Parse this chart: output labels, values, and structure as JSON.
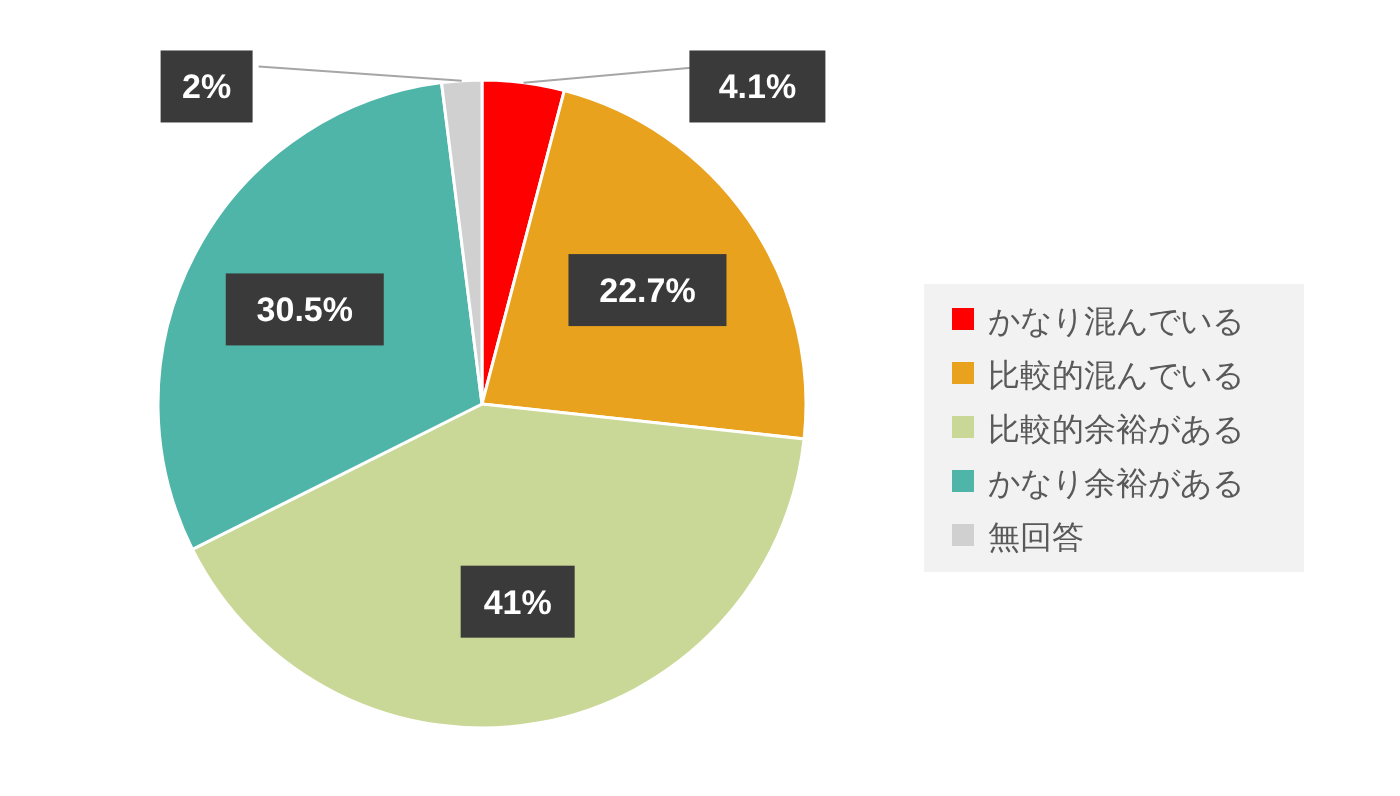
{
  "chart_data": {
    "type": "pie",
    "categories": [
      "かなり混んでいる",
      "比較的混んでいる",
      "比較的余裕がある",
      "かなり余裕がある",
      "無回答"
    ],
    "values": [
      4.1,
      22.7,
      41,
      30.5,
      2
    ],
    "colors": [
      "#ff0000",
      "#e8a21e",
      "#c9d896",
      "#4fb5a8",
      "#d0d0d0"
    ],
    "value_labels": [
      "4.1%",
      "22.7%",
      "41%",
      "30.5%",
      "2%"
    ],
    "legend": "right"
  }
}
